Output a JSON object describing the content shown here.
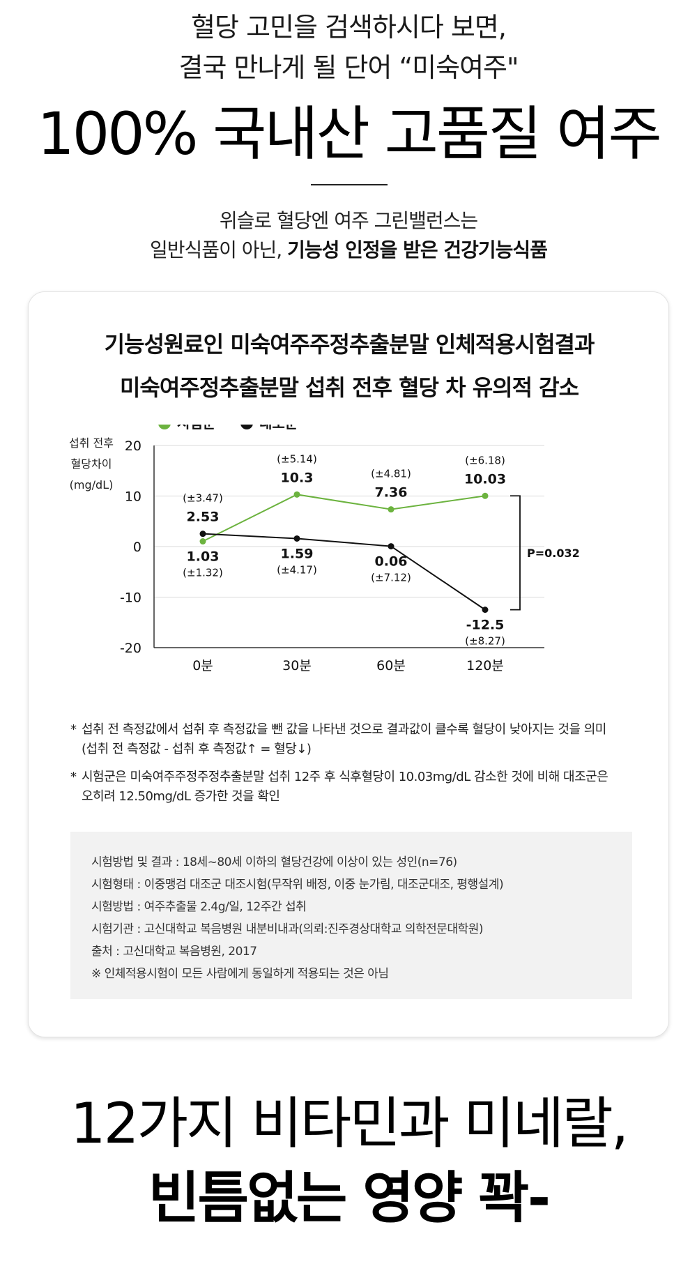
{
  "intro": {
    "line1": "혈당 고민을 검색하시다 보면,",
    "line2": "결국 만나게 될 단어 “미숙여주\""
  },
  "headline": "100% 국내산 고품질 여주",
  "subtitle": {
    "line1": "위슬로 혈당엔 여주 그린밸런스는",
    "line2_plain": "일반식품이 아닌, ",
    "line2_bold": "기능성 인정을 받은 건강기능식품"
  },
  "card": {
    "title1": "기능성원료인 미숙여주주정추출분말 인체적용시험결과",
    "title2": "미숙여주정추출분말 섭취 전후 혈당 차 유의적 감소"
  },
  "chart_data": {
    "type": "line",
    "categories": [
      "0분",
      "30분",
      "60분",
      "120분"
    ],
    "ylabel_lines": [
      "섭취 전후",
      "혈당차이",
      "(mg/dL)"
    ],
    "yticks": [
      "20",
      "10",
      "0",
      "-10",
      "-20"
    ],
    "ylim": [
      -20,
      20
    ],
    "grid": true,
    "legend_position": "top-left",
    "series": [
      {
        "name": "시험군",
        "color": "#6cb33f",
        "values": [
          1.03,
          10.3,
          7.36,
          10.03
        ],
        "value_labels": [
          "1.03",
          "10.3",
          "7.36",
          "10.03"
        ],
        "sd_labels": [
          "(±1.32)",
          "(±5.14)",
          "(±4.81)",
          "(±6.18)"
        ]
      },
      {
        "name": "대조군",
        "color": "#111111",
        "values": [
          2.53,
          1.59,
          0.06,
          -12.5
        ],
        "value_labels": [
          "2.53",
          "1.59",
          "0.06",
          "-12.5"
        ],
        "sd_labels": [
          "(±3.47)",
          "(±4.17)",
          "(±7.12)",
          "(±8.27)"
        ]
      }
    ],
    "annotation": "P=0.032"
  },
  "notes": {
    "note1_line1": "섭취 전 측정값에서 섭취 후 측정값을 뺀 값을 나타낸 것으로 결과값이 클수록 혈당이 낮아지는 것을 의미",
    "note1_line2": "(섭취 전 측정값 - 섭취 후 측정값↑ = 혈당↓)",
    "note2_line1": "시험군은 미숙여주주정주정추출분말 섭취 12주 후 식후혈당이 10.03mg/dL 감소한 것에 비해 대조군은",
    "note2_line2": "오히려 12.50mg/dL 증가한 것을 확인",
    "star": "*"
  },
  "method": [
    "시험방법 및 결과 : 18세~80세 이하의 혈당건강에 이상이 있는 성인(n=76)",
    "시험형태 : 이중맹검 대조군 대조시험(무작위 배정, 이중 눈가림, 대조군대조, 평행설계)",
    "시험방법 : 여주추출물 2.4g/일, 12주간 섭취",
    "시험기관 : 고신대학교 복음병원 내분비내과(의뢰:진주경상대학교 의학전문대학원)",
    "출처 : 고신대학교 복음병원, 2017",
    "※ 인체적용시험이 모든 사람에게 동일하게 적용되는 것은 아님"
  ],
  "closing": {
    "line1": "12가지 비타민과 미네랄,",
    "line2": "빈틈없는 영양 꽉-"
  }
}
